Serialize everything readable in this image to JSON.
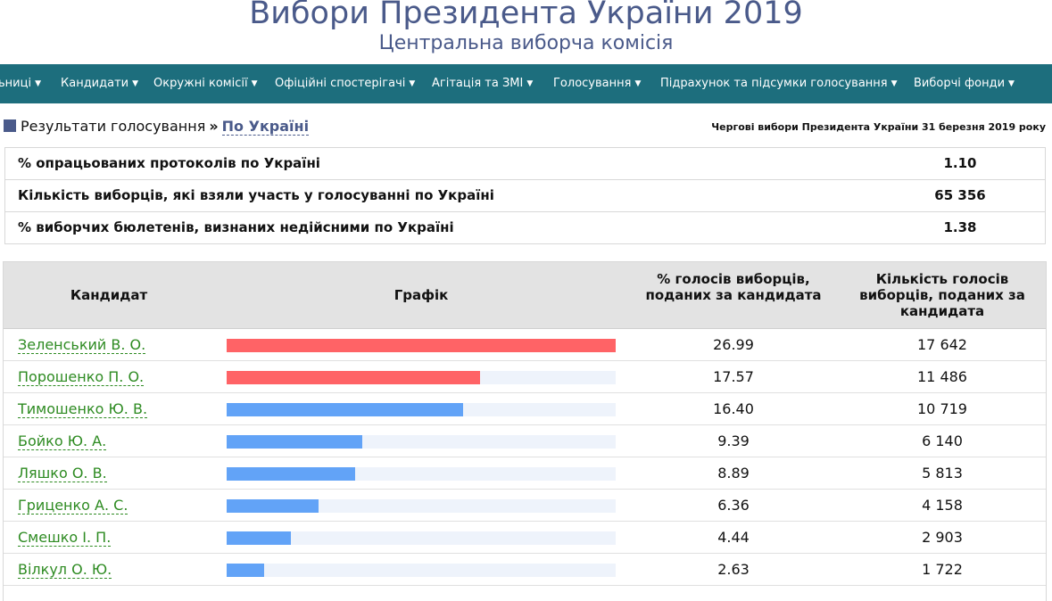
{
  "header": {
    "title": "Вибори Президента України 2019",
    "subtitle": "Центральна виборча комісія"
  },
  "nav": [
    {
      "label": "ьниці"
    },
    {
      "label": "Кандидати"
    },
    {
      "label": "Окружні комісії"
    },
    {
      "label": "Офіційні спостерігачі"
    },
    {
      "label": "Агітація та ЗМІ"
    },
    {
      "label": "Голосування"
    },
    {
      "label": "Підрахунок та підсумки голосування"
    },
    {
      "label": "Виборчі фонди"
    }
  ],
  "breadcrumb": {
    "section": "Результати голосування",
    "separator": "»",
    "current": "По Україні"
  },
  "election_label": "Чергові вибори Президента України 31 березня 2019 року",
  "summary": [
    {
      "label": "% опрацьованих протоколів по Україні",
      "value": "1.10"
    },
    {
      "label": "Кількість виборців, які взяли участь у голосуванні по Україні",
      "value": "65 356"
    },
    {
      "label": "% виборчих бюлетенів, визнаних недійсними по Україні",
      "value": "1.38"
    }
  ],
  "results": {
    "columns": {
      "candidate": "Кандидат",
      "chart": "Графік",
      "percent": "% голосів виборців, поданих за кандидата",
      "votes": "Кількість голосів виборців, поданих за кандидата"
    },
    "rows": [
      {
        "name": "Зеленський В. О.",
        "percent": "26.99",
        "votes": "17 642",
        "bar_color": "#ff6366"
      },
      {
        "name": "Порошенко П. О.",
        "percent": "17.57",
        "votes": "11 486",
        "bar_color": "#ff6366"
      },
      {
        "name": "Тимошенко Ю. В.",
        "percent": "16.40",
        "votes": "10 719",
        "bar_color": "#62a3f7"
      },
      {
        "name": "Бойко Ю. А.",
        "percent": "9.39",
        "votes": "6 140",
        "bar_color": "#62a3f7"
      },
      {
        "name": "Ляшко О. В.",
        "percent": "8.89",
        "votes": "5 813",
        "bar_color": "#62a3f7"
      },
      {
        "name": "Гриценко А. С.",
        "percent": "6.36",
        "votes": "4 158",
        "bar_color": "#62a3f7"
      },
      {
        "name": "Смешко І. П.",
        "percent": "4.44",
        "votes": "2 903",
        "bar_color": "#62a3f7"
      },
      {
        "name": "Вілкул О. Ю.",
        "percent": "2.63",
        "votes": "1 722",
        "bar_color": "#62a3f7"
      }
    ]
  },
  "colors": {
    "title": "#4a5a8a",
    "nav_background": "#1d6e7d",
    "leader_bar": "#ff6366",
    "other_bar": "#62a3f7",
    "bar_track": "#eef3fb",
    "candidate_link": "#2e8b22"
  }
}
